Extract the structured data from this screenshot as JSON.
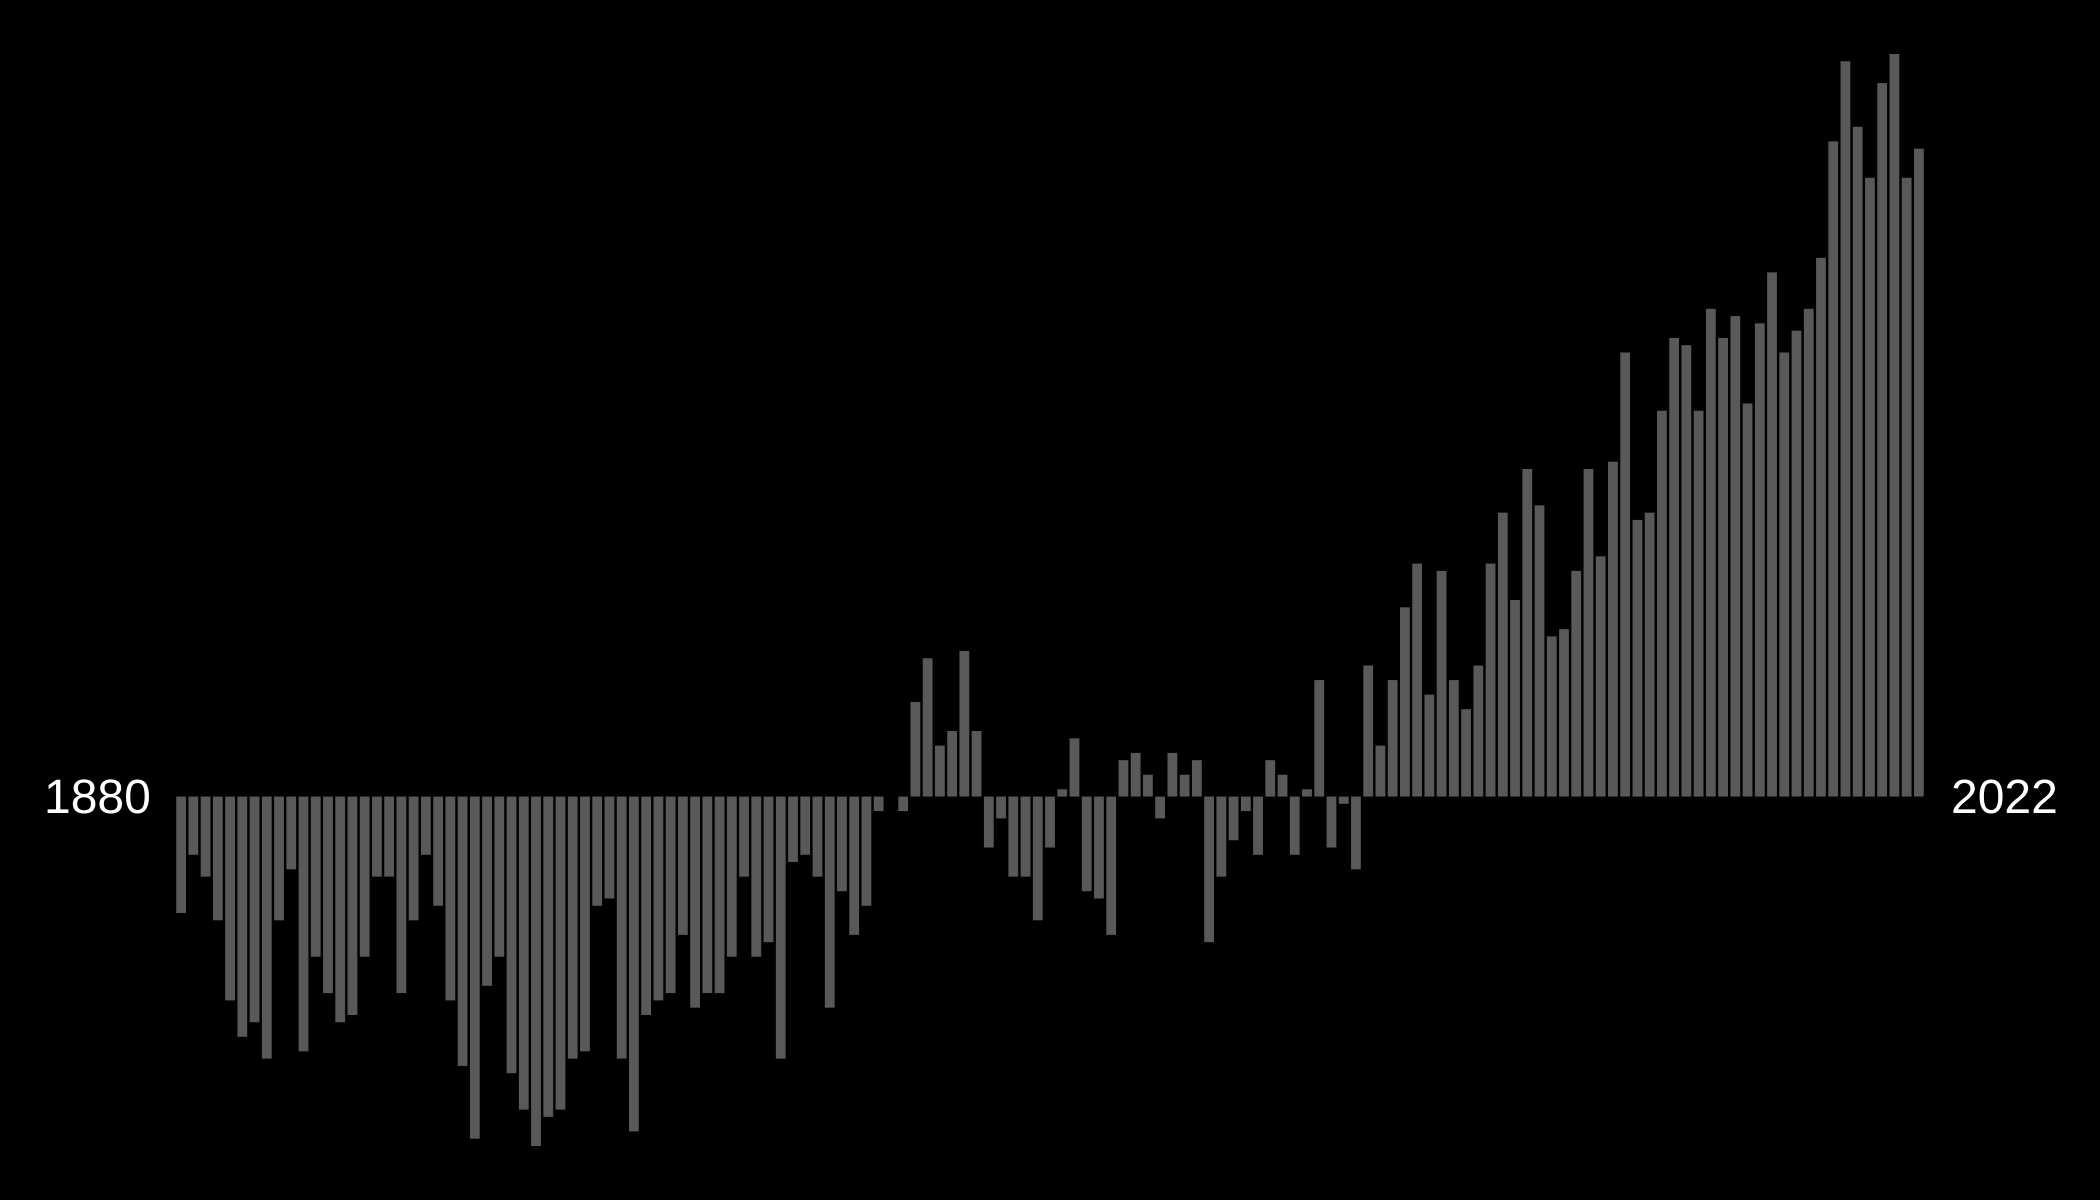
{
  "chart_data": {
    "type": "bar",
    "x_start_label": "1880",
    "x_end_label": "2022",
    "bar_color": "#595959",
    "background_color": "#000000",
    "label_color": "#ffffff",
    "grid": false,
    "ylim": [
      -0.48,
      1.02
    ],
    "categories": [
      1880,
      1881,
      1882,
      1883,
      1884,
      1885,
      1886,
      1887,
      1888,
      1889,
      1890,
      1891,
      1892,
      1893,
      1894,
      1895,
      1896,
      1897,
      1898,
      1899,
      1900,
      1901,
      1902,
      1903,
      1904,
      1905,
      1906,
      1907,
      1908,
      1909,
      1910,
      1911,
      1912,
      1913,
      1914,
      1915,
      1916,
      1917,
      1918,
      1919,
      1920,
      1921,
      1922,
      1923,
      1924,
      1925,
      1926,
      1927,
      1928,
      1929,
      1930,
      1931,
      1932,
      1933,
      1934,
      1935,
      1936,
      1937,
      1938,
      1939,
      1940,
      1941,
      1942,
      1943,
      1944,
      1945,
      1946,
      1947,
      1948,
      1949,
      1950,
      1951,
      1952,
      1953,
      1954,
      1955,
      1956,
      1957,
      1958,
      1959,
      1960,
      1961,
      1962,
      1963,
      1964,
      1965,
      1966,
      1967,
      1968,
      1969,
      1970,
      1971,
      1972,
      1973,
      1974,
      1975,
      1976,
      1977,
      1978,
      1979,
      1980,
      1981,
      1982,
      1983,
      1984,
      1985,
      1986,
      1987,
      1988,
      1989,
      1990,
      1991,
      1992,
      1993,
      1994,
      1995,
      1996,
      1997,
      1998,
      1999,
      2000,
      2001,
      2002,
      2003,
      2004,
      2005,
      2006,
      2007,
      2008,
      2009,
      2010,
      2011,
      2012,
      2013,
      2014,
      2015,
      2016,
      2017,
      2018,
      2019,
      2020,
      2021,
      2022
    ],
    "values": [
      -0.16,
      -0.08,
      -0.11,
      -0.17,
      -0.28,
      -0.33,
      -0.31,
      -0.36,
      -0.17,
      -0.1,
      -0.35,
      -0.22,
      -0.27,
      -0.31,
      -0.3,
      -0.22,
      -0.11,
      -0.11,
      -0.27,
      -0.17,
      -0.08,
      -0.15,
      -0.28,
      -0.37,
      -0.47,
      -0.26,
      -0.22,
      -0.38,
      -0.43,
      -0.48,
      -0.44,
      -0.43,
      -0.36,
      -0.35,
      -0.15,
      -0.14,
      -0.36,
      -0.46,
      -0.3,
      -0.28,
      -0.27,
      -0.19,
      -0.29,
      -0.27,
      -0.27,
      -0.22,
      -0.11,
      -0.22,
      -0.2,
      -0.36,
      -0.09,
      -0.08,
      -0.11,
      -0.29,
      -0.13,
      -0.19,
      -0.15,
      -0.02,
      0.0,
      -0.02,
      0.13,
      0.19,
      0.07,
      0.09,
      0.2,
      0.09,
      -0.07,
      -0.03,
      -0.11,
      -0.11,
      -0.17,
      -0.07,
      0.01,
      0.08,
      -0.13,
      -0.14,
      -0.19,
      0.05,
      0.06,
      0.03,
      -0.03,
      0.06,
      0.03,
      0.05,
      -0.2,
      -0.11,
      -0.06,
      -0.02,
      -0.08,
      0.05,
      0.03,
      -0.08,
      0.01,
      0.16,
      -0.07,
      -0.01,
      -0.1,
      0.18,
      0.07,
      0.16,
      0.26,
      0.32,
      0.14,
      0.31,
      0.16,
      0.12,
      0.18,
      0.32,
      0.39,
      0.27,
      0.45,
      0.4,
      0.22,
      0.23,
      0.31,
      0.45,
      0.33,
      0.46,
      0.61,
      0.38,
      0.39,
      0.53,
      0.63,
      0.62,
      0.53,
      0.67,
      0.63,
      0.66,
      0.54,
      0.65,
      0.72,
      0.61,
      0.64,
      0.67,
      0.74,
      0.9,
      1.01,
      0.92,
      0.85,
      0.98,
      1.02,
      0.85,
      0.89
    ]
  }
}
